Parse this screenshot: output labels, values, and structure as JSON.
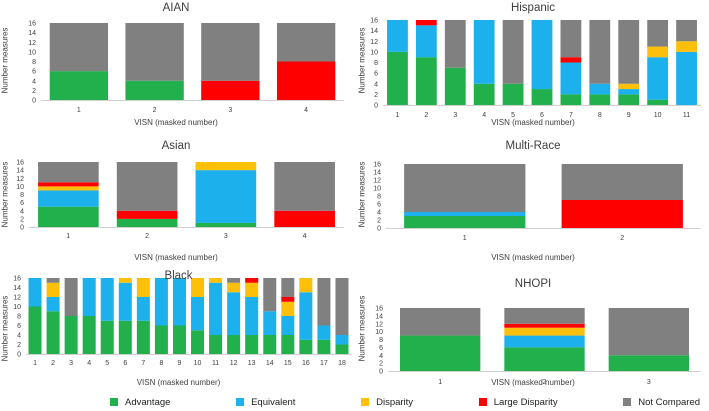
{
  "colors": {
    "Advantage": "#21b04b",
    "Equivalent": "#1cb0ec",
    "Disparity": "#fcbf0a",
    "Large Disparity": "#ff0000",
    "Not Compared": "#808080"
  },
  "legend": [
    "Advantage",
    "Equivalent",
    "Disparity",
    "Large Disparity",
    "Not Compared"
  ],
  "chart_data": [
    {
      "id": "aian",
      "type": "bar",
      "stacked": true,
      "title": "AIAN",
      "xlabel": "VISN (masked number)",
      "ylabel": "Number measures",
      "ylim": [
        0,
        16
      ],
      "yticks": [
        0,
        2,
        4,
        6,
        8,
        10,
        12,
        14,
        16
      ],
      "categories": [
        "1",
        "2",
        "3",
        "4"
      ],
      "series": [
        {
          "name": "Advantage",
          "values": [
            6,
            4,
            0,
            0
          ]
        },
        {
          "name": "Equivalent",
          "values": [
            0,
            0,
            0,
            0
          ]
        },
        {
          "name": "Disparity",
          "values": [
            0,
            0,
            0,
            0
          ]
        },
        {
          "name": "Large Disparity",
          "values": [
            0,
            0,
            4,
            8
          ]
        },
        {
          "name": "Not Compared",
          "values": [
            10,
            12,
            12,
            8
          ]
        }
      ]
    },
    {
      "id": "hispanic",
      "type": "bar",
      "stacked": true,
      "title": "Hispanic",
      "xlabel": "VISN (masked number)",
      "ylabel": "Number measures",
      "ylim": [
        0,
        16
      ],
      "yticks": [
        0,
        2,
        4,
        6,
        8,
        10,
        12,
        14,
        16
      ],
      "categories": [
        "1",
        "2",
        "3",
        "4",
        "5",
        "6",
        "7",
        "8",
        "9",
        "10",
        "11"
      ],
      "series": [
        {
          "name": "Advantage",
          "values": [
            10,
            9,
            7,
            4,
            4,
            3,
            2,
            2,
            2,
            1,
            0
          ]
        },
        {
          "name": "Equivalent",
          "values": [
            6,
            6,
            0,
            12,
            0,
            13,
            6,
            2,
            1,
            8,
            10
          ]
        },
        {
          "name": "Disparity",
          "values": [
            0,
            0,
            0,
            0,
            0,
            0,
            0,
            0,
            1,
            2,
            2
          ]
        },
        {
          "name": "Large Disparity",
          "values": [
            0,
            1,
            0,
            0,
            0,
            0,
            1,
            0,
            0,
            0,
            0
          ]
        },
        {
          "name": "Not Compared",
          "values": [
            0,
            0,
            9,
            0,
            12,
            0,
            7,
            12,
            12,
            5,
            4
          ]
        }
      ]
    },
    {
      "id": "asian",
      "type": "bar",
      "stacked": true,
      "title": "Asian",
      "xlabel": "VISN (masked number)",
      "ylabel": "Number measures",
      "ylim": [
        0,
        16
      ],
      "yticks": [
        0,
        2,
        4,
        6,
        8,
        10,
        12,
        14,
        16
      ],
      "categories": [
        "1",
        "2",
        "3",
        "4"
      ],
      "series": [
        {
          "name": "Advantage",
          "values": [
            5,
            2,
            1,
            0
          ]
        },
        {
          "name": "Equivalent",
          "values": [
            4,
            0,
            13,
            0
          ]
        },
        {
          "name": "Disparity",
          "values": [
            1,
            0,
            2,
            0
          ]
        },
        {
          "name": "Large Disparity",
          "values": [
            1,
            2,
            0,
            4
          ]
        },
        {
          "name": "Not Compared",
          "values": [
            5,
            12,
            0,
            12
          ]
        }
      ]
    },
    {
      "id": "multirace",
      "type": "bar",
      "stacked": true,
      "title": "Multi-Race",
      "xlabel": "VISN (masked number)",
      "ylabel": "Number measures",
      "ylim": [
        0,
        16
      ],
      "yticks": [
        0,
        2,
        4,
        6,
        8,
        10,
        12,
        14,
        16
      ],
      "categories": [
        "1",
        "2"
      ],
      "series": [
        {
          "name": "Advantage",
          "values": [
            3,
            0
          ]
        },
        {
          "name": "Equivalent",
          "values": [
            1,
            0
          ]
        },
        {
          "name": "Disparity",
          "values": [
            0,
            0
          ]
        },
        {
          "name": "Large Disparity",
          "values": [
            0,
            7
          ]
        },
        {
          "name": "Not Compared",
          "values": [
            12,
            9
          ]
        }
      ]
    },
    {
      "id": "black",
      "type": "bar",
      "stacked": true,
      "title": "Black",
      "xlabel": "VISN (masked number)",
      "ylabel": "Number measures",
      "ylim": [
        0,
        16
      ],
      "yticks": [
        0,
        2,
        4,
        6,
        8,
        10,
        12,
        14,
        16
      ],
      "categories": [
        "1",
        "2",
        "3",
        "4",
        "5",
        "6",
        "7",
        "8",
        "9",
        "10",
        "11",
        "12",
        "13",
        "14",
        "15",
        "16",
        "17",
        "18"
      ],
      "series": [
        {
          "name": "Advantage",
          "values": [
            10,
            9,
            8,
            8,
            7,
            7,
            7,
            6,
            6,
            5,
            4,
            4,
            4,
            4,
            4,
            3,
            3,
            2
          ]
        },
        {
          "name": "Equivalent",
          "values": [
            6,
            3,
            0,
            8,
            9,
            8,
            5,
            10,
            10,
            7,
            11,
            9,
            8,
            5,
            4,
            10,
            3,
            2
          ]
        },
        {
          "name": "Disparity",
          "values": [
            0,
            3,
            0,
            0,
            0,
            1,
            4,
            0,
            0,
            4,
            1,
            2,
            3,
            0,
            3,
            3,
            0,
            0
          ]
        },
        {
          "name": "Large Disparity",
          "values": [
            0,
            0,
            0,
            0,
            0,
            0,
            0,
            0,
            0,
            0,
            0,
            0,
            1,
            0,
            1,
            0,
            0,
            0
          ]
        },
        {
          "name": "Not Compared",
          "values": [
            0,
            1,
            8,
            0,
            0,
            0,
            0,
            0,
            0,
            0,
            0,
            1,
            0,
            7,
            4,
            0,
            10,
            12
          ]
        }
      ]
    },
    {
      "id": "nhopi",
      "type": "bar",
      "stacked": true,
      "title": "NHOPI",
      "xlabel": "VISN (masked number)",
      "ylabel": "Number measures",
      "ylim": [
        0,
        16
      ],
      "yticks": [
        0,
        2,
        4,
        6,
        8,
        10,
        12,
        14,
        16
      ],
      "categories": [
        "1",
        "2",
        "3"
      ],
      "series": [
        {
          "name": "Advantage",
          "values": [
            9,
            6,
            4
          ]
        },
        {
          "name": "Equivalent",
          "values": [
            0,
            3,
            0
          ]
        },
        {
          "name": "Disparity",
          "values": [
            0,
            2,
            0
          ]
        },
        {
          "name": "Large Disparity",
          "values": [
            0,
            1,
            0
          ]
        },
        {
          "name": "Not Compared",
          "values": [
            7,
            4,
            12
          ]
        }
      ]
    }
  ]
}
